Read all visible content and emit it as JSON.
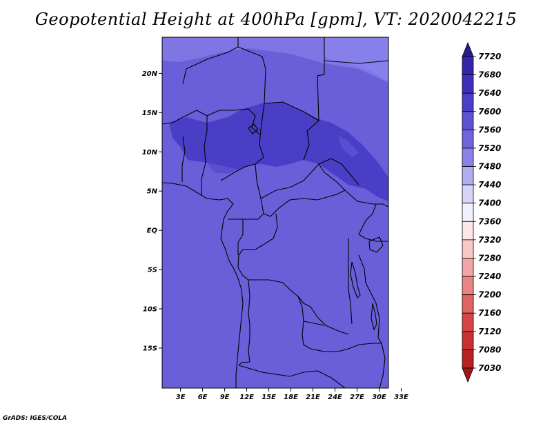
{
  "title": "Geopotential Height at 400hPa [gpm], VT: 2020042215",
  "credit": "GrADS: IGES/COLA",
  "map": {
    "lat_labels": [
      "20N",
      "15N",
      "10N",
      "5N",
      "EQ",
      "5S",
      "10S",
      "15S"
    ],
    "lon_labels": [
      "3E",
      "6E",
      "9E",
      "12E",
      "15E",
      "18E",
      "21E",
      "24E",
      "27E",
      "30E",
      "33E"
    ],
    "base_color": "#6a5fd8"
  },
  "colorbar": {
    "levels": [
      "7720",
      "7680",
      "7640",
      "7600",
      "7560",
      "7520",
      "7480",
      "7440",
      "7400",
      "7360",
      "7320",
      "7280",
      "7240",
      "7200",
      "7160",
      "7120",
      "7080",
      "7030"
    ],
    "colors": [
      "#2a1a8f",
      "#3424a8",
      "#3e2fba",
      "#4b3fc8",
      "#5d51d4",
      "#6f64dc",
      "#8a82e6",
      "#b3aef0",
      "#d6d4f7",
      "#f1f0fc",
      "#fde6e6",
      "#f8c8c8",
      "#f0a6a6",
      "#e88585",
      "#df6464",
      "#d64646",
      "#c93030",
      "#b82222",
      "#a51616"
    ]
  }
}
